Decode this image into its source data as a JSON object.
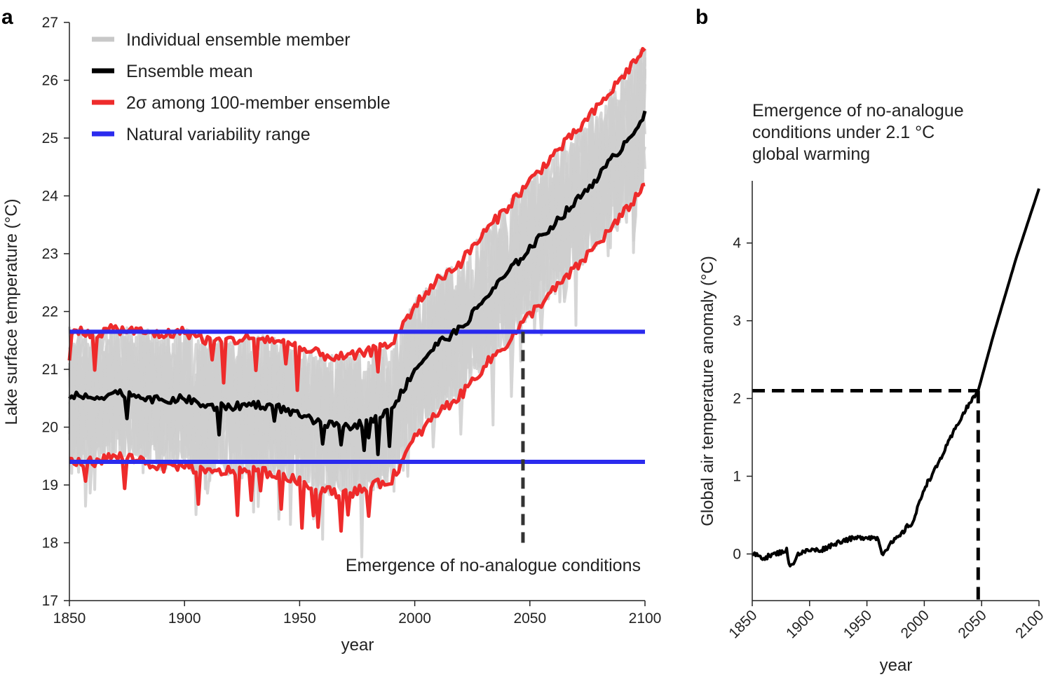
{
  "chart_data": [
    {
      "panel": "a",
      "type": "line",
      "xlabel": "year",
      "ylabel": "Lake surface temperature (°C)",
      "xlim": [
        1850,
        2100
      ],
      "ylim": [
        17,
        27
      ],
      "xticks": [
        "1850",
        "1900",
        "1950",
        "2000",
        "2050",
        "2100"
      ],
      "yticks": [
        "17",
        "18",
        "19",
        "20",
        "21",
        "22",
        "23",
        "24",
        "25",
        "26",
        "27"
      ],
      "legend": [
        {
          "label": "Individual ensemble member",
          "color": "#c8c8c8"
        },
        {
          "label": "Ensemble mean",
          "color": "#000000"
        },
        {
          "label": "2σ among 100-member ensemble",
          "color": "#ee2b2b"
        },
        {
          "label": "Natural variability range",
          "color": "#2b2bee"
        }
      ],
      "natural_variability_range": [
        19.4,
        21.65
      ],
      "emergence_year": 2047,
      "annotation": "Emergence of no-analogue conditions",
      "series": [
        {
          "name": "Ensemble mean",
          "x": [
            1850,
            1860,
            1870,
            1880,
            1890,
            1900,
            1910,
            1920,
            1930,
            1940,
            1950,
            1960,
            1970,
            1980,
            1990,
            2000,
            2010,
            2020,
            2030,
            2040,
            2050,
            2060,
            2070,
            2080,
            2090,
            2100
          ],
          "values": [
            20.55,
            20.5,
            20.6,
            20.55,
            20.45,
            20.5,
            20.35,
            20.35,
            20.4,
            20.35,
            20.2,
            20.05,
            20.0,
            20.1,
            20.3,
            21.0,
            21.45,
            21.7,
            22.2,
            22.65,
            23.1,
            23.5,
            23.9,
            24.35,
            24.85,
            25.4
          ]
        },
        {
          "name": "2σ upper",
          "x": [
            1850,
            1860,
            1870,
            1880,
            1890,
            1900,
            1910,
            1920,
            1930,
            1940,
            1950,
            1960,
            1970,
            1980,
            1990,
            2000,
            2010,
            2020,
            2030,
            2040,
            2050,
            2060,
            2070,
            2080,
            2090,
            2100
          ],
          "values": [
            21.7,
            21.6,
            21.7,
            21.65,
            21.6,
            21.65,
            21.5,
            21.5,
            21.55,
            21.5,
            21.35,
            21.25,
            21.2,
            21.3,
            21.45,
            22.1,
            22.55,
            22.85,
            23.35,
            23.8,
            24.25,
            24.7,
            25.1,
            25.55,
            26.05,
            26.55
          ]
        },
        {
          "name": "2σ lower",
          "x": [
            1850,
            1860,
            1870,
            1880,
            1890,
            1900,
            1910,
            1920,
            1930,
            1940,
            1950,
            1960,
            1970,
            1980,
            1990,
            2000,
            2010,
            2020,
            2030,
            2040,
            2050,
            2060,
            2070,
            2080,
            2090,
            2100
          ],
          "values": [
            19.4,
            19.4,
            19.5,
            19.45,
            19.3,
            19.35,
            19.2,
            19.25,
            19.25,
            19.2,
            19.05,
            18.9,
            18.85,
            18.95,
            19.1,
            19.8,
            20.25,
            20.55,
            21.05,
            21.45,
            21.95,
            22.35,
            22.75,
            23.2,
            23.65,
            24.2
          ]
        }
      ]
    },
    {
      "panel": "b",
      "type": "line",
      "title": "Emergence of no-analogue conditions under 2.1 °C global warming",
      "title_lines": [
        "Emergence of no-analogue",
        "conditions under 2.1 °C",
        "global warming"
      ],
      "xlabel": "year",
      "ylabel": "Global air temperature anomaly (°C)",
      "xlim": [
        1850,
        2100
      ],
      "ylim": [
        -0.6,
        4.8
      ],
      "xticks": [
        "1850",
        "1900",
        "1950",
        "2000",
        "2050",
        "2100"
      ],
      "yticks": [
        "0",
        "1",
        "2",
        "3",
        "4"
      ],
      "threshold": 2.1,
      "threshold_year": 2047,
      "series": [
        {
          "name": "Global air temperature anomaly",
          "x": [
            1850,
            1860,
            1870,
            1880,
            1883,
            1890,
            1900,
            1910,
            1920,
            1930,
            1940,
            1950,
            1960,
            1963,
            1970,
            1980,
            1985,
            1990,
            2000,
            2010,
            2020,
            2030,
            2040,
            2047,
            2060,
            2070,
            2080,
            2090,
            2100
          ],
          "values": [
            0.0,
            -0.05,
            0.0,
            0.05,
            -0.18,
            0.0,
            0.05,
            0.05,
            0.12,
            0.18,
            0.2,
            0.22,
            0.2,
            0.0,
            0.12,
            0.25,
            0.35,
            0.4,
            0.85,
            1.1,
            1.4,
            1.7,
            1.95,
            2.1,
            2.8,
            3.3,
            3.8,
            4.25,
            4.7
          ]
        }
      ]
    }
  ]
}
